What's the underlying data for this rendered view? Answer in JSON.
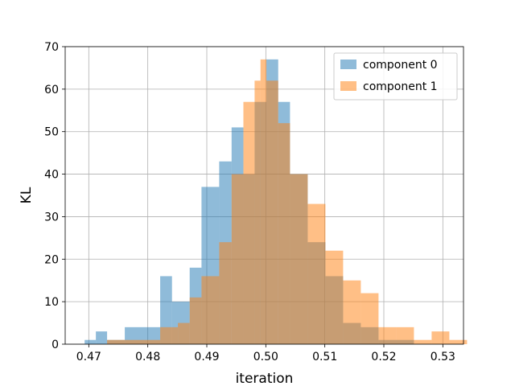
{
  "chart_data": {
    "type": "histogram",
    "xlabel": "iteration",
    "ylabel": "KL",
    "xlim": [
      0.466,
      0.5335
    ],
    "ylim": [
      0,
      70
    ],
    "xticks": [
      0.47,
      0.48,
      0.49,
      0.5,
      0.51,
      0.52,
      0.53
    ],
    "xtick_labels": [
      "0.47",
      "0.48",
      "0.49",
      "0.50",
      "0.51",
      "0.52",
      "0.53"
    ],
    "yticks": [
      0,
      10,
      20,
      30,
      40,
      50,
      60,
      70
    ],
    "ytick_labels": [
      "0",
      "10",
      "20",
      "30",
      "40",
      "50",
      "60",
      "70"
    ],
    "grid": true,
    "legend_position": "top-right",
    "series": [
      {
        "name": "component 0",
        "color": "#1f77b4",
        "alpha": 0.5,
        "bins": [
          [
            0.4693,
            0.4712,
            1
          ],
          [
            0.4712,
            0.4731,
            3
          ],
          [
            0.4731,
            0.4761,
            1
          ],
          [
            0.4761,
            0.4821,
            4
          ],
          [
            0.4821,
            0.4841,
            16
          ],
          [
            0.4841,
            0.4871,
            10
          ],
          [
            0.4871,
            0.4891,
            18
          ],
          [
            0.4891,
            0.4921,
            37
          ],
          [
            0.4921,
            0.4942,
            43
          ],
          [
            0.4942,
            0.4962,
            51
          ],
          [
            0.4962,
            0.4981,
            40
          ],
          [
            0.4981,
            0.5001,
            57
          ],
          [
            0.5001,
            0.5021,
            67
          ],
          [
            0.5021,
            0.5041,
            57
          ],
          [
            0.5041,
            0.5071,
            40
          ],
          [
            0.5071,
            0.5101,
            24
          ],
          [
            0.5101,
            0.5131,
            16
          ],
          [
            0.5131,
            0.5161,
            5
          ],
          [
            0.5161,
            0.5191,
            4
          ],
          [
            0.5191,
            0.5251,
            1
          ]
        ]
      },
      {
        "name": "component 1",
        "color": "#ff7f0e",
        "alpha": 0.5,
        "bins": [
          [
            0.4731,
            0.4761,
            1
          ],
          [
            0.4761,
            0.4821,
            1
          ],
          [
            0.4821,
            0.4851,
            4
          ],
          [
            0.4851,
            0.4871,
            5
          ],
          [
            0.4871,
            0.4891,
            11
          ],
          [
            0.4891,
            0.4921,
            16
          ],
          [
            0.4921,
            0.4942,
            24
          ],
          [
            0.4942,
            0.4962,
            40
          ],
          [
            0.4962,
            0.4981,
            57
          ],
          [
            0.4981,
            0.4991,
            62
          ],
          [
            0.4991,
            0.5001,
            67
          ],
          [
            0.5001,
            0.5021,
            62
          ],
          [
            0.5021,
            0.5041,
            52
          ],
          [
            0.5041,
            0.5071,
            40
          ],
          [
            0.5071,
            0.5101,
            33
          ],
          [
            0.5101,
            0.5131,
            22
          ],
          [
            0.5131,
            0.5161,
            15
          ],
          [
            0.5161,
            0.5191,
            12
          ],
          [
            0.5191,
            0.5221,
            4
          ],
          [
            0.5221,
            0.5251,
            4
          ],
          [
            0.5251,
            0.5281,
            1
          ],
          [
            0.5281,
            0.5311,
            3
          ],
          [
            0.5311,
            0.5341,
            1
          ]
        ]
      }
    ]
  }
}
